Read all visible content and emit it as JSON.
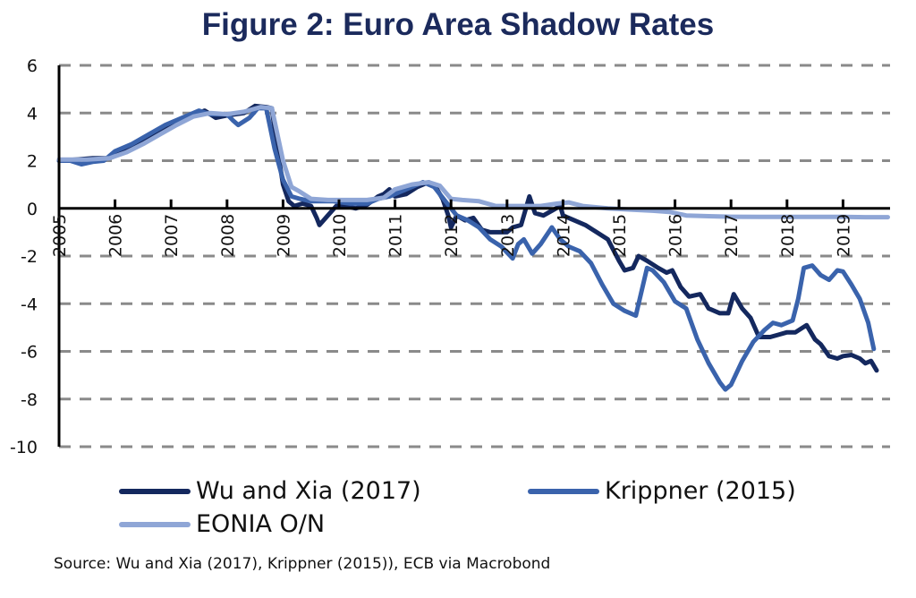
{
  "chart_data": {
    "type": "line",
    "title": "Figure 2: Euro Area Shadow Rates",
    "xlabel": "",
    "ylabel": "",
    "ylim": [
      -10,
      6
    ],
    "xlim": [
      2005,
      2019.8
    ],
    "yticks": [
      6,
      4,
      2,
      0,
      -2,
      -4,
      -6,
      -8,
      -10
    ],
    "xticks": [
      "2005",
      "2006",
      "2007",
      "2008",
      "2009",
      "2010",
      "2011",
      "2012",
      "2013",
      "2014",
      "2015",
      "2016",
      "2017",
      "2018",
      "2019"
    ],
    "grid": "horizontal dashed",
    "legend_position": "bottom",
    "series": [
      {
        "name": "Wu and Xia (2017)",
        "color": "#14285e",
        "points": [
          [
            2005.0,
            2.0
          ],
          [
            2005.3,
            2.05
          ],
          [
            2005.6,
            2.1
          ],
          [
            2005.9,
            2.1
          ],
          [
            2006.2,
            2.5
          ],
          [
            2006.5,
            2.8
          ],
          [
            2006.8,
            3.2
          ],
          [
            2007.1,
            3.6
          ],
          [
            2007.4,
            3.9
          ],
          [
            2007.6,
            4.1
          ],
          [
            2007.8,
            3.8
          ],
          [
            2008.0,
            3.9
          ],
          [
            2008.3,
            4.0
          ],
          [
            2008.5,
            4.3
          ],
          [
            2008.7,
            4.25
          ],
          [
            2008.8,
            4.2
          ],
          [
            2008.9,
            2.5
          ],
          [
            2009.0,
            1.0
          ],
          [
            2009.1,
            0.3
          ],
          [
            2009.2,
            0.1
          ],
          [
            2009.35,
            0.2
          ],
          [
            2009.5,
            0.1
          ],
          [
            2009.6,
            -0.4
          ],
          [
            2009.65,
            -0.7
          ],
          [
            2009.8,
            -0.3
          ],
          [
            2009.95,
            0.1
          ],
          [
            2010.1,
            0.1
          ],
          [
            2010.3,
            0.0
          ],
          [
            2010.5,
            0.15
          ],
          [
            2010.7,
            0.5
          ],
          [
            2010.8,
            0.6
          ],
          [
            2010.9,
            0.8
          ],
          [
            2011.0,
            0.5
          ],
          [
            2011.2,
            0.6
          ],
          [
            2011.4,
            0.9
          ],
          [
            2011.6,
            1.1
          ],
          [
            2011.75,
            0.8
          ],
          [
            2011.85,
            0.4
          ],
          [
            2011.95,
            -0.3
          ],
          [
            2012.0,
            -0.8
          ],
          [
            2012.1,
            -0.3
          ],
          [
            2012.25,
            -0.5
          ],
          [
            2012.4,
            -0.4
          ],
          [
            2012.55,
            -0.9
          ],
          [
            2012.7,
            -1.0
          ],
          [
            2012.85,
            -1.0
          ],
          [
            2013.0,
            -1.0
          ],
          [
            2013.1,
            -0.8
          ],
          [
            2013.25,
            -0.7
          ],
          [
            2013.4,
            0.5
          ],
          [
            2013.5,
            -0.2
          ],
          [
            2013.65,
            -0.3
          ],
          [
            2013.8,
            -0.1
          ],
          [
            2013.95,
            0.1
          ],
          [
            2014.0,
            -0.3
          ],
          [
            2014.2,
            -0.5
          ],
          [
            2014.4,
            -0.7
          ],
          [
            2014.6,
            -1.0
          ],
          [
            2014.8,
            -1.3
          ],
          [
            2015.0,
            -2.2
          ],
          [
            2015.1,
            -2.6
          ],
          [
            2015.25,
            -2.5
          ],
          [
            2015.35,
            -2.0
          ],
          [
            2015.5,
            -2.2
          ],
          [
            2015.7,
            -2.5
          ],
          [
            2015.85,
            -2.7
          ],
          [
            2015.95,
            -2.6
          ],
          [
            2016.1,
            -3.3
          ],
          [
            2016.25,
            -3.7
          ],
          [
            2016.45,
            -3.6
          ],
          [
            2016.6,
            -4.2
          ],
          [
            2016.8,
            -4.4
          ],
          [
            2016.95,
            -4.4
          ],
          [
            2017.05,
            -3.6
          ],
          [
            2017.2,
            -4.2
          ],
          [
            2017.35,
            -4.6
          ],
          [
            2017.5,
            -5.4
          ],
          [
            2017.7,
            -5.4
          ],
          [
            2017.85,
            -5.3
          ],
          [
            2018.0,
            -5.2
          ],
          [
            2018.15,
            -5.2
          ],
          [
            2018.35,
            -4.9
          ],
          [
            2018.5,
            -5.5
          ],
          [
            2018.6,
            -5.7
          ],
          [
            2018.75,
            -6.2
          ],
          [
            2018.9,
            -6.3
          ],
          [
            2019.0,
            -6.2
          ],
          [
            2019.15,
            -6.15
          ],
          [
            2019.3,
            -6.3
          ],
          [
            2019.4,
            -6.5
          ],
          [
            2019.5,
            -6.4
          ],
          [
            2019.6,
            -6.8
          ]
        ]
      },
      {
        "name": "Krippner (2015)",
        "color": "#3a63ac",
        "points": [
          [
            2005.0,
            2.0
          ],
          [
            2005.2,
            2.0
          ],
          [
            2005.4,
            1.85
          ],
          [
            2005.6,
            1.95
          ],
          [
            2005.8,
            2.0
          ],
          [
            2006.0,
            2.4
          ],
          [
            2006.3,
            2.7
          ],
          [
            2006.6,
            3.1
          ],
          [
            2006.9,
            3.5
          ],
          [
            2007.2,
            3.8
          ],
          [
            2007.5,
            4.1
          ],
          [
            2007.7,
            3.95
          ],
          [
            2008.0,
            3.95
          ],
          [
            2008.1,
            3.7
          ],
          [
            2008.2,
            3.5
          ],
          [
            2008.4,
            3.8
          ],
          [
            2008.55,
            4.2
          ],
          [
            2008.7,
            4.2
          ],
          [
            2008.85,
            2.5
          ],
          [
            2009.0,
            1.2
          ],
          [
            2009.15,
            0.5
          ],
          [
            2009.3,
            0.4
          ],
          [
            2009.5,
            0.3
          ],
          [
            2009.7,
            0.3
          ],
          [
            2009.9,
            0.3
          ],
          [
            2010.2,
            0.2
          ],
          [
            2010.5,
            0.2
          ],
          [
            2010.7,
            0.4
          ],
          [
            2010.9,
            0.5
          ],
          [
            2011.1,
            0.7
          ],
          [
            2011.3,
            0.9
          ],
          [
            2011.5,
            1.1
          ],
          [
            2011.7,
            0.9
          ],
          [
            2011.9,
            0.3
          ],
          [
            2012.1,
            -0.3
          ],
          [
            2012.3,
            -0.5
          ],
          [
            2012.5,
            -0.8
          ],
          [
            2012.7,
            -1.3
          ],
          [
            2012.9,
            -1.6
          ],
          [
            2013.1,
            -2.1
          ],
          [
            2013.2,
            -1.5
          ],
          [
            2013.3,
            -1.3
          ],
          [
            2013.45,
            -1.9
          ],
          [
            2013.6,
            -1.5
          ],
          [
            2013.8,
            -0.8
          ],
          [
            2013.95,
            -1.3
          ],
          [
            2014.1,
            -1.6
          ],
          [
            2014.3,
            -1.8
          ],
          [
            2014.5,
            -2.3
          ],
          [
            2014.7,
            -3.2
          ],
          [
            2014.9,
            -4.0
          ],
          [
            2015.1,
            -4.3
          ],
          [
            2015.3,
            -4.5
          ],
          [
            2015.5,
            -2.5
          ],
          [
            2015.6,
            -2.6
          ],
          [
            2015.8,
            -3.1
          ],
          [
            2016.0,
            -3.9
          ],
          [
            2016.2,
            -4.2
          ],
          [
            2016.4,
            -5.5
          ],
          [
            2016.6,
            -6.5
          ],
          [
            2016.8,
            -7.3
          ],
          [
            2016.9,
            -7.6
          ],
          [
            2017.0,
            -7.4
          ],
          [
            2017.2,
            -6.4
          ],
          [
            2017.4,
            -5.6
          ],
          [
            2017.6,
            -5.1
          ],
          [
            2017.75,
            -4.8
          ],
          [
            2017.9,
            -4.9
          ],
          [
            2018.0,
            -4.8
          ],
          [
            2018.1,
            -4.7
          ],
          [
            2018.2,
            -3.8
          ],
          [
            2018.3,
            -2.5
          ],
          [
            2018.45,
            -2.4
          ],
          [
            2018.6,
            -2.8
          ],
          [
            2018.75,
            -3.0
          ],
          [
            2018.9,
            -2.6
          ],
          [
            2019.0,
            -2.65
          ],
          [
            2019.15,
            -3.2
          ],
          [
            2019.3,
            -3.8
          ],
          [
            2019.45,
            -4.8
          ],
          [
            2019.55,
            -5.9
          ]
        ]
      },
      {
        "name": "EONIA O/N",
        "color": "#8fa6d6",
        "points": [
          [
            2005.0,
            2.05
          ],
          [
            2005.5,
            2.05
          ],
          [
            2005.9,
            2.1
          ],
          [
            2006.2,
            2.35
          ],
          [
            2006.5,
            2.7
          ],
          [
            2006.8,
            3.1
          ],
          [
            2007.1,
            3.5
          ],
          [
            2007.4,
            3.85
          ],
          [
            2007.7,
            4.0
          ],
          [
            2008.0,
            3.95
          ],
          [
            2008.3,
            4.05
          ],
          [
            2008.6,
            4.25
          ],
          [
            2008.8,
            4.2
          ],
          [
            2009.0,
            2.0
          ],
          [
            2009.15,
            0.9
          ],
          [
            2009.3,
            0.7
          ],
          [
            2009.5,
            0.4
          ],
          [
            2009.8,
            0.35
          ],
          [
            2010.2,
            0.35
          ],
          [
            2010.5,
            0.35
          ],
          [
            2010.8,
            0.45
          ],
          [
            2011.0,
            0.8
          ],
          [
            2011.3,
            1.0
          ],
          [
            2011.6,
            1.1
          ],
          [
            2011.8,
            0.95
          ],
          [
            2012.0,
            0.4
          ],
          [
            2012.2,
            0.35
          ],
          [
            2012.5,
            0.3
          ],
          [
            2012.8,
            0.1
          ],
          [
            2013.2,
            0.1
          ],
          [
            2013.6,
            0.1
          ],
          [
            2013.9,
            0.2
          ],
          [
            2014.1,
            0.25
          ],
          [
            2014.35,
            0.1
          ],
          [
            2014.8,
            0.0
          ],
          [
            2015.2,
            -0.05
          ],
          [
            2015.6,
            -0.1
          ],
          [
            2015.9,
            -0.15
          ],
          [
            2016.2,
            -0.3
          ],
          [
            2016.6,
            -0.33
          ],
          [
            2017.0,
            -0.35
          ],
          [
            2017.5,
            -0.36
          ],
          [
            2018.0,
            -0.36
          ],
          [
            2018.5,
            -0.36
          ],
          [
            2019.0,
            -0.36
          ],
          [
            2019.4,
            -0.37
          ],
          [
            2019.8,
            -0.37
          ]
        ]
      }
    ],
    "source": "Source: Wu and Xia (2017), Krippner (2015)), ECB via Macrobond"
  }
}
